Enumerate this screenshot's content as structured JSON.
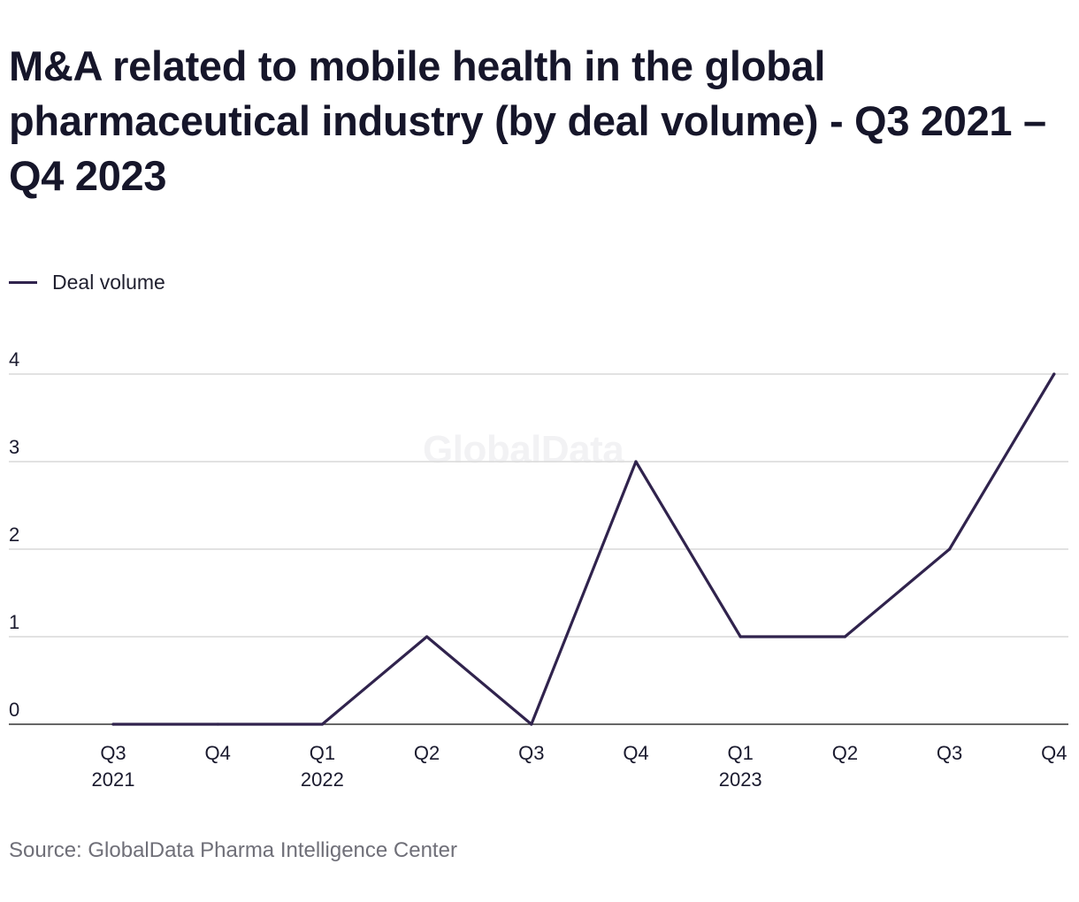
{
  "title": "M&A related to mobile health in the global pharmaceutical industry (by deal volume) - Q3 2021 – Q4 2023",
  "watermark": "GlobalData",
  "source": "Source: GlobalData Pharma Intelligence Center",
  "colors": {
    "line": "#30234d",
    "grid": "#d9d9d9",
    "axis": "#333333",
    "text": "#1a1a2e"
  },
  "chart_data": {
    "type": "line",
    "title": "M&A related to mobile health in the global pharmaceutical industry (by deal volume) - Q3 2021 – Q4 2023",
    "legend_position": "top-left",
    "grid": true,
    "categories": [
      [
        "Q3",
        "2021"
      ],
      [
        "Q4",
        ""
      ],
      [
        "Q1",
        "2022"
      ],
      [
        "Q2",
        ""
      ],
      [
        "Q3",
        ""
      ],
      [
        "Q4",
        ""
      ],
      [
        "Q1",
        "2023"
      ],
      [
        "Q2",
        ""
      ],
      [
        "Q3",
        ""
      ],
      [
        "Q4",
        ""
      ]
    ],
    "yticks": [
      0,
      1,
      2,
      3,
      4
    ],
    "ylim": [
      0,
      4
    ],
    "xlabel": "",
    "ylabel": "",
    "series": [
      {
        "name": "Deal volume",
        "values": [
          0,
          0,
          0,
          1,
          0,
          3,
          1,
          1,
          2,
          4
        ]
      }
    ]
  }
}
